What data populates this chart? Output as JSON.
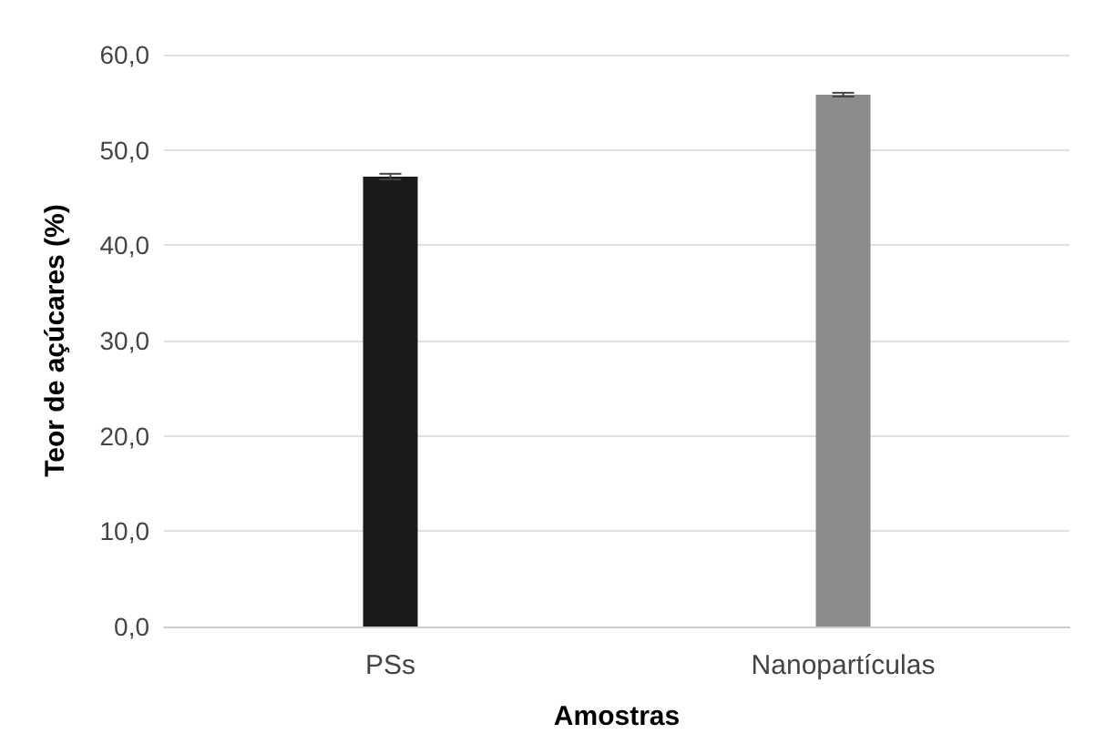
{
  "chart_data": {
    "type": "bar",
    "categories": [
      "PSs",
      "Nanopartículas"
    ],
    "values": [
      47.2,
      55.8
    ],
    "errors": [
      0.3,
      0.2
    ],
    "colors": [
      "#1a1a1a",
      "#8c8c8c"
    ],
    "xlabel": "Amostras",
    "ylabel": "Teor de açúcares (%)",
    "ylim": [
      0,
      60
    ],
    "yticks": [
      {
        "value": 0,
        "label": "0,0"
      },
      {
        "value": 10,
        "label": "10,0"
      },
      {
        "value": 20,
        "label": "20,0"
      },
      {
        "value": 30,
        "label": "30,0"
      },
      {
        "value": 40,
        "label": "40,0"
      },
      {
        "value": 50,
        "label": "50,0"
      },
      {
        "value": 60,
        "label": "60,0"
      }
    ],
    "grid": "y"
  }
}
